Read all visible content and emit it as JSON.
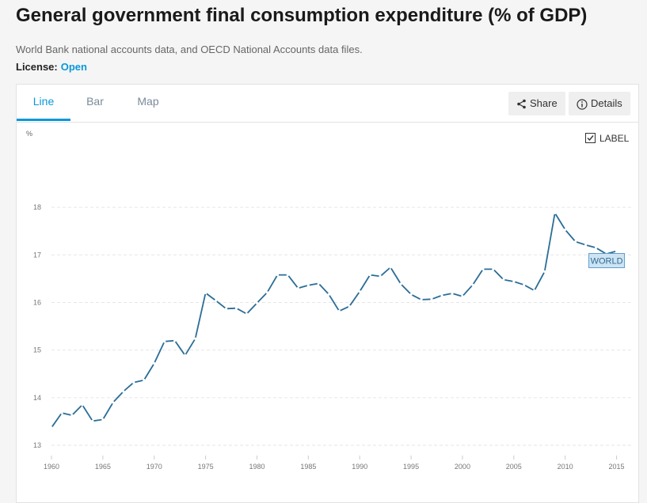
{
  "header": {
    "title": "General government final consumption expenditure (% of GDP)",
    "source": "World Bank national accounts data, and OECD National Accounts data files.",
    "license_label": "License:",
    "license_value": "Open"
  },
  "tabs": [
    {
      "label": "Line",
      "active": true
    },
    {
      "label": "Bar",
      "active": false
    },
    {
      "label": "Map",
      "active": false
    }
  ],
  "toolbar": {
    "share_label": "Share",
    "share_icon": "share-icon",
    "details_label": "Details",
    "details_icon": "info-icon"
  },
  "label_toggle": {
    "label": "LABEL",
    "checked": true
  },
  "colors": {
    "accent": "#0a97d9",
    "line": "#2a6d96"
  },
  "chart_data": {
    "type": "line",
    "unit_label": "%",
    "x": [
      1960,
      1961,
      1962,
      1963,
      1964,
      1965,
      1966,
      1967,
      1968,
      1969,
      1970,
      1971,
      1972,
      1973,
      1974,
      1975,
      1976,
      1977,
      1978,
      1979,
      1980,
      1981,
      1982,
      1983,
      1984,
      1985,
      1986,
      1987,
      1988,
      1989,
      1990,
      1991,
      1992,
      1993,
      1994,
      1995,
      1996,
      1997,
      1998,
      1999,
      2000,
      2001,
      2002,
      2003,
      2004,
      2005,
      2006,
      2007,
      2008,
      2009,
      2010,
      2011,
      2012,
      2013,
      2014,
      2015
    ],
    "series": [
      {
        "name": "WORLD",
        "values": [
          13.37,
          13.68,
          13.63,
          13.85,
          13.51,
          13.54,
          13.9,
          14.13,
          14.32,
          14.37,
          14.72,
          15.18,
          15.2,
          14.89,
          15.24,
          16.2,
          16.04,
          15.87,
          15.88,
          15.76,
          15.99,
          16.21,
          16.58,
          16.58,
          16.3,
          16.36,
          16.4,
          16.17,
          15.82,
          15.92,
          16.23,
          16.58,
          16.55,
          16.74,
          16.39,
          16.17,
          16.06,
          16.07,
          16.15,
          16.19,
          16.13,
          16.37,
          16.7,
          16.7,
          16.48,
          16.44,
          16.37,
          16.25,
          16.65,
          17.88,
          17.53,
          17.28,
          17.21,
          17.15,
          17.02,
          17.08
        ]
      }
    ],
    "xticks": [
      1960,
      1965,
      1970,
      1975,
      1980,
      1985,
      1990,
      1995,
      2000,
      2005,
      2010,
      2015
    ],
    "yticks": [
      13,
      14,
      15,
      16,
      17,
      18
    ],
    "ylim": [
      13,
      18.8
    ],
    "xlim": [
      1960,
      2016.5
    ],
    "grid": true,
    "series_label_position": "end-of-line"
  }
}
